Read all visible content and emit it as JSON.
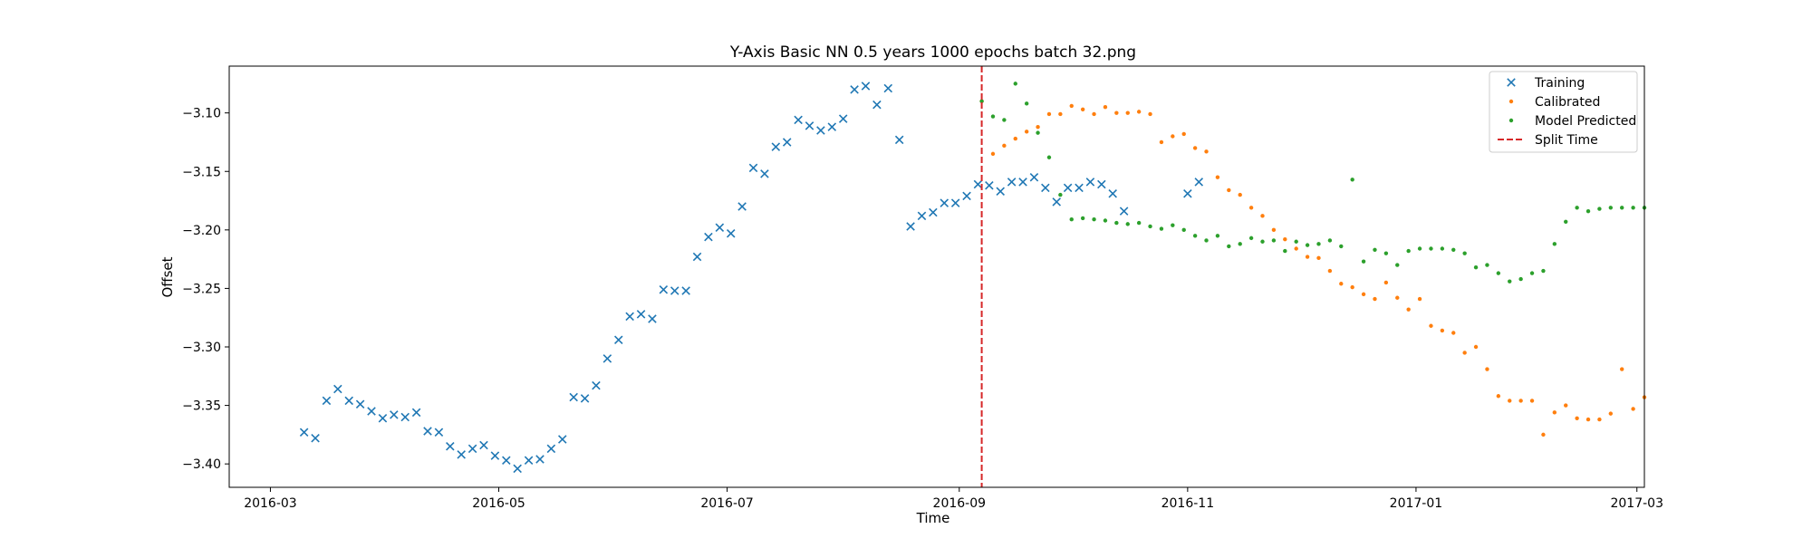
{
  "chart_data": {
    "type": "scatter",
    "title": "Y-Axis Basic NN 0.5 years 1000 epochs batch 32.png",
    "xlabel": "Time",
    "ylabel": "Offset",
    "x_axis_type": "date",
    "xlim": [
      "2016-02-19",
      "2017-03-03"
    ],
    "ylim": [
      -3.42,
      -3.06
    ],
    "x_ticks": [
      "2016-03",
      "2016-05",
      "2016-07",
      "2016-09",
      "2016-11",
      "2017-01",
      "2017-03"
    ],
    "y_ticks": [
      -3.4,
      -3.35,
      -3.3,
      -3.25,
      -3.2,
      -3.15,
      -3.1
    ],
    "y_tick_labels": [
      "−3.40",
      "−3.35",
      "−3.30",
      "−3.25",
      "−3.20",
      "−3.15",
      "−3.10"
    ],
    "grid": false,
    "legend_position": "top-right",
    "split_time": "2016-09-07",
    "series": [
      {
        "name": "Training",
        "marker": "x",
        "color": "#1f77b4",
        "points": [
          [
            "2016-03-10",
            -3.373
          ],
          [
            "2016-03-13",
            -3.378
          ],
          [
            "2016-03-16",
            -3.346
          ],
          [
            "2016-03-19",
            -3.336
          ],
          [
            "2016-03-22",
            -3.346
          ],
          [
            "2016-03-25",
            -3.349
          ],
          [
            "2016-03-28",
            -3.355
          ],
          [
            "2016-03-31",
            -3.361
          ],
          [
            "2016-04-03",
            -3.358
          ],
          [
            "2016-04-06",
            -3.36
          ],
          [
            "2016-04-09",
            -3.356
          ],
          [
            "2016-04-12",
            -3.372
          ],
          [
            "2016-04-15",
            -3.373
          ],
          [
            "2016-04-18",
            -3.385
          ],
          [
            "2016-04-21",
            -3.392
          ],
          [
            "2016-04-24",
            -3.387
          ],
          [
            "2016-04-27",
            -3.384
          ],
          [
            "2016-04-30",
            -3.393
          ],
          [
            "2016-05-03",
            -3.397
          ],
          [
            "2016-05-06",
            -3.404
          ],
          [
            "2016-05-09",
            -3.397
          ],
          [
            "2016-05-12",
            -3.396
          ],
          [
            "2016-05-15",
            -3.387
          ],
          [
            "2016-05-18",
            -3.379
          ],
          [
            "2016-05-21",
            -3.343
          ],
          [
            "2016-05-24",
            -3.344
          ],
          [
            "2016-05-27",
            -3.333
          ],
          [
            "2016-05-30",
            -3.31
          ],
          [
            "2016-06-02",
            -3.294
          ],
          [
            "2016-06-05",
            -3.274
          ],
          [
            "2016-06-08",
            -3.272
          ],
          [
            "2016-06-11",
            -3.276
          ],
          [
            "2016-06-14",
            -3.251
          ],
          [
            "2016-06-17",
            -3.252
          ],
          [
            "2016-06-20",
            -3.252
          ],
          [
            "2016-06-23",
            -3.223
          ],
          [
            "2016-06-26",
            -3.206
          ],
          [
            "2016-06-29",
            -3.198
          ],
          [
            "2016-07-02",
            -3.203
          ],
          [
            "2016-07-05",
            -3.18
          ],
          [
            "2016-07-08",
            -3.147
          ],
          [
            "2016-07-11",
            -3.152
          ],
          [
            "2016-07-14",
            -3.129
          ],
          [
            "2016-07-17",
            -3.125
          ],
          [
            "2016-07-20",
            -3.106
          ],
          [
            "2016-07-23",
            -3.111
          ],
          [
            "2016-07-26",
            -3.115
          ],
          [
            "2016-07-29",
            -3.112
          ],
          [
            "2016-08-01",
            -3.105
          ],
          [
            "2016-08-04",
            -3.08
          ],
          [
            "2016-08-07",
            -3.077
          ],
          [
            "2016-08-10",
            -3.093
          ],
          [
            "2016-08-13",
            -3.079
          ],
          [
            "2016-08-16",
            -3.123
          ],
          [
            "2016-08-19",
            -3.197
          ],
          [
            "2016-08-22",
            -3.188
          ],
          [
            "2016-08-25",
            -3.185
          ],
          [
            "2016-08-28",
            -3.177
          ],
          [
            "2016-08-31",
            -3.177
          ],
          [
            "2016-09-03",
            -3.171
          ],
          [
            "2016-09-06",
            -3.161
          ],
          [
            "2016-09-09",
            -3.162
          ],
          [
            "2016-09-12",
            -3.167
          ],
          [
            "2016-09-15",
            -3.159
          ],
          [
            "2016-09-18",
            -3.159
          ],
          [
            "2016-09-21",
            -3.155
          ],
          [
            "2016-09-24",
            -3.164
          ],
          [
            "2016-09-27",
            -3.176
          ],
          [
            "2016-09-30",
            -3.164
          ],
          [
            "2016-10-03",
            -3.164
          ],
          [
            "2016-10-06",
            -3.159
          ],
          [
            "2016-10-09",
            -3.161
          ],
          [
            "2016-10-12",
            -3.169
          ],
          [
            "2016-10-15",
            -3.184
          ],
          [
            "2016-11-01",
            -3.169
          ],
          [
            "2016-11-04",
            -3.159
          ]
        ]
      },
      {
        "name": "Calibrated",
        "marker": "dot",
        "color": "#ff7f0e",
        "points": [
          [
            "2016-09-07",
            -3.09
          ],
          [
            "2016-09-10",
            -3.135
          ],
          [
            "2016-09-13",
            -3.128
          ],
          [
            "2016-09-16",
            -3.122
          ],
          [
            "2016-09-19",
            -3.116
          ],
          [
            "2016-09-22",
            -3.112
          ],
          [
            "2016-09-25",
            -3.101
          ],
          [
            "2016-09-28",
            -3.101
          ],
          [
            "2016-10-01",
            -3.094
          ],
          [
            "2016-10-04",
            -3.097
          ],
          [
            "2016-10-07",
            -3.101
          ],
          [
            "2016-10-10",
            -3.095
          ],
          [
            "2016-10-13",
            -3.1
          ],
          [
            "2016-10-16",
            -3.1
          ],
          [
            "2016-10-19",
            -3.099
          ],
          [
            "2016-10-22",
            -3.101
          ],
          [
            "2016-10-25",
            -3.125
          ],
          [
            "2016-10-28",
            -3.12
          ],
          [
            "2016-10-31",
            -3.118
          ],
          [
            "2016-11-03",
            -3.13
          ],
          [
            "2016-11-06",
            -3.133
          ],
          [
            "2016-11-09",
            -3.155
          ],
          [
            "2016-11-12",
            -3.166
          ],
          [
            "2016-11-15",
            -3.17
          ],
          [
            "2016-11-18",
            -3.181
          ],
          [
            "2016-11-21",
            -3.188
          ],
          [
            "2016-11-24",
            -3.2
          ],
          [
            "2016-11-27",
            -3.208
          ],
          [
            "2016-11-30",
            -3.216
          ],
          [
            "2016-12-03",
            -3.223
          ],
          [
            "2016-12-06",
            -3.224
          ],
          [
            "2016-12-09",
            -3.235
          ],
          [
            "2016-12-12",
            -3.246
          ],
          [
            "2016-12-15",
            -3.249
          ],
          [
            "2016-12-18",
            -3.255
          ],
          [
            "2016-12-21",
            -3.259
          ],
          [
            "2016-12-24",
            -3.245
          ],
          [
            "2016-12-27",
            -3.258
          ],
          [
            "2016-12-30",
            -3.268
          ],
          [
            "2017-01-02",
            -3.259
          ],
          [
            "2017-01-05",
            -3.282
          ],
          [
            "2017-01-08",
            -3.286
          ],
          [
            "2017-01-11",
            -3.288
          ],
          [
            "2017-01-14",
            -3.305
          ],
          [
            "2017-01-17",
            -3.3
          ],
          [
            "2017-01-20",
            -3.319
          ],
          [
            "2017-01-23",
            -3.342
          ],
          [
            "2017-01-26",
            -3.346
          ],
          [
            "2017-01-29",
            -3.346
          ],
          [
            "2017-02-01",
            -3.346
          ],
          [
            "2017-02-04",
            -3.375
          ],
          [
            "2017-02-07",
            -3.356
          ],
          [
            "2017-02-10",
            -3.35
          ],
          [
            "2017-02-13",
            -3.361
          ],
          [
            "2017-02-16",
            -3.362
          ],
          [
            "2017-02-19",
            -3.362
          ],
          [
            "2017-02-22",
            -3.357
          ],
          [
            "2017-02-25",
            -3.319
          ],
          [
            "2017-02-28",
            -3.353
          ],
          [
            "2017-03-03",
            -3.343
          ]
        ]
      },
      {
        "name": "Model Predicted",
        "marker": "dot",
        "color": "#2ca02c",
        "points": [
          [
            "2016-09-07",
            -3.09
          ],
          [
            "2016-09-10",
            -3.103
          ],
          [
            "2016-09-13",
            -3.106
          ],
          [
            "2016-09-16",
            -3.075
          ],
          [
            "2016-09-19",
            -3.092
          ],
          [
            "2016-09-22",
            -3.117
          ],
          [
            "2016-09-25",
            -3.138
          ],
          [
            "2016-09-28",
            -3.17
          ],
          [
            "2016-10-01",
            -3.191
          ],
          [
            "2016-10-04",
            -3.19
          ],
          [
            "2016-10-07",
            -3.191
          ],
          [
            "2016-10-10",
            -3.192
          ],
          [
            "2016-10-13",
            -3.194
          ],
          [
            "2016-10-16",
            -3.195
          ],
          [
            "2016-10-19",
            -3.194
          ],
          [
            "2016-10-22",
            -3.197
          ],
          [
            "2016-10-25",
            -3.199
          ],
          [
            "2016-10-28",
            -3.196
          ],
          [
            "2016-10-31",
            -3.2
          ],
          [
            "2016-11-03",
            -3.205
          ],
          [
            "2016-11-06",
            -3.209
          ],
          [
            "2016-11-09",
            -3.205
          ],
          [
            "2016-11-12",
            -3.214
          ],
          [
            "2016-11-15",
            -3.212
          ],
          [
            "2016-11-18",
            -3.207
          ],
          [
            "2016-11-21",
            -3.21
          ],
          [
            "2016-11-24",
            -3.209
          ],
          [
            "2016-11-27",
            -3.218
          ],
          [
            "2016-11-30",
            -3.21
          ],
          [
            "2016-12-03",
            -3.213
          ],
          [
            "2016-12-06",
            -3.212
          ],
          [
            "2016-12-09",
            -3.209
          ],
          [
            "2016-12-12",
            -3.214
          ],
          [
            "2016-12-15",
            -3.157
          ],
          [
            "2016-12-18",
            -3.227
          ],
          [
            "2016-12-21",
            -3.217
          ],
          [
            "2016-12-24",
            -3.22
          ],
          [
            "2016-12-27",
            -3.23
          ],
          [
            "2016-12-30",
            -3.218
          ],
          [
            "2017-01-02",
            -3.216
          ],
          [
            "2017-01-05",
            -3.216
          ],
          [
            "2017-01-08",
            -3.216
          ],
          [
            "2017-01-11",
            -3.217
          ],
          [
            "2017-01-14",
            -3.22
          ],
          [
            "2017-01-17",
            -3.232
          ],
          [
            "2017-01-20",
            -3.23
          ],
          [
            "2017-01-23",
            -3.237
          ],
          [
            "2017-01-26",
            -3.244
          ],
          [
            "2017-01-29",
            -3.242
          ],
          [
            "2017-02-01",
            -3.237
          ],
          [
            "2017-02-04",
            -3.235
          ],
          [
            "2017-02-07",
            -3.212
          ],
          [
            "2017-02-10",
            -3.193
          ],
          [
            "2017-02-13",
            -3.181
          ],
          [
            "2017-02-16",
            -3.184
          ],
          [
            "2017-02-19",
            -3.182
          ],
          [
            "2017-02-22",
            -3.181
          ],
          [
            "2017-02-25",
            -3.181
          ],
          [
            "2017-02-28",
            -3.181
          ],
          [
            "2017-03-03",
            -3.181
          ]
        ]
      },
      {
        "name": "Split Time",
        "marker": "dashed-line",
        "color": "#d62728"
      }
    ]
  }
}
